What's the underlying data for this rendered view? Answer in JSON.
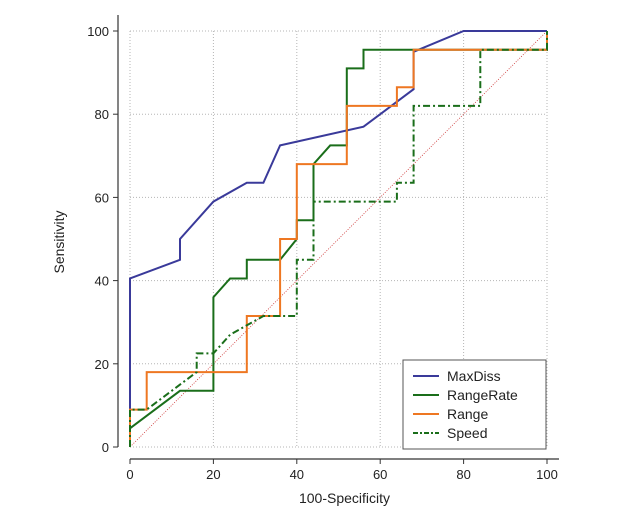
{
  "chart_data": {
    "type": "line",
    "xlabel": "100-Specificity",
    "ylabel": "Sensitivity",
    "xlim": [
      0,
      100
    ],
    "ylim": [
      0,
      100
    ],
    "xticks": [
      0,
      20,
      40,
      60,
      80,
      100
    ],
    "yticks": [
      0,
      20,
      40,
      60,
      80,
      100
    ],
    "grid": true,
    "legend_position": "bottom-right",
    "diagonal_reference": {
      "color": "#cc3333",
      "style": "dotted"
    },
    "series": [
      {
        "name": "MaxDiss",
        "color": "#3a3a9a",
        "style": "solid",
        "points": [
          [
            0,
            0
          ],
          [
            0,
            40.5
          ],
          [
            12,
            45
          ],
          [
            12,
            50
          ],
          [
            20,
            59
          ],
          [
            28,
            63.5
          ],
          [
            32,
            63.5
          ],
          [
            36,
            72.5
          ],
          [
            56,
            77
          ],
          [
            68,
            86
          ],
          [
            68,
            95
          ],
          [
            80,
            100
          ],
          [
            100,
            100
          ]
        ]
      },
      {
        "name": "RangeRate",
        "color": "#1a6e1a",
        "style": "solid",
        "points": [
          [
            0,
            4.5
          ],
          [
            12,
            13.5
          ],
          [
            20,
            13.5
          ],
          [
            20,
            36
          ],
          [
            24,
            40.5
          ],
          [
            28,
            40.5
          ],
          [
            28,
            45
          ],
          [
            36,
            45
          ],
          [
            40,
            50
          ],
          [
            40,
            54.5
          ],
          [
            44,
            54.5
          ],
          [
            44,
            68
          ],
          [
            48,
            72.5
          ],
          [
            52,
            72.5
          ],
          [
            52,
            91
          ],
          [
            56,
            91
          ],
          [
            56,
            95.5
          ],
          [
            100,
            95.5
          ],
          [
            100,
            100
          ]
        ]
      },
      {
        "name": "Range",
        "color": "#ee7722",
        "style": "solid",
        "points": [
          [
            0,
            0
          ],
          [
            0,
            9
          ],
          [
            4,
            9
          ],
          [
            4,
            18
          ],
          [
            28,
            18
          ],
          [
            28,
            31.5
          ],
          [
            36,
            31.5
          ],
          [
            36,
            50
          ],
          [
            40,
            50
          ],
          [
            40,
            68
          ],
          [
            52,
            68
          ],
          [
            52,
            82
          ],
          [
            64,
            82
          ],
          [
            64,
            86.5
          ],
          [
            68,
            86.5
          ],
          [
            68,
            95.5
          ],
          [
            100,
            95.5
          ],
          [
            100,
            100
          ]
        ]
      },
      {
        "name": "Speed",
        "color": "#1a6e1a",
        "style": "dashdot",
        "points": [
          [
            0,
            0
          ],
          [
            0,
            9
          ],
          [
            4,
            9
          ],
          [
            16,
            18
          ],
          [
            16,
            22.5
          ],
          [
            20,
            22.5
          ],
          [
            24,
            27
          ],
          [
            32,
            31.5
          ],
          [
            40,
            31.5
          ],
          [
            40,
            45
          ],
          [
            44,
            45
          ],
          [
            44,
            59
          ],
          [
            64,
            59
          ],
          [
            64,
            63.5
          ],
          [
            68,
            63.5
          ],
          [
            68,
            82
          ],
          [
            84,
            82
          ],
          [
            84,
            95.5
          ],
          [
            100,
            95.5
          ],
          [
            100,
            100
          ]
        ]
      }
    ]
  }
}
